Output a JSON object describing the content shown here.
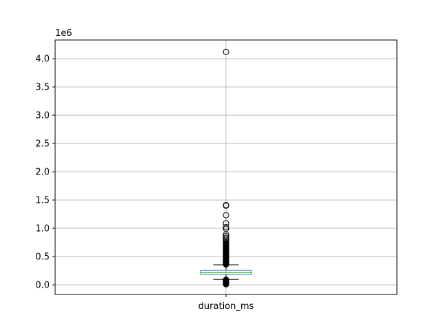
{
  "chart_data": {
    "type": "box",
    "category": "duration_ms",
    "offset_label": "1e6",
    "y_ticks": [
      0.0,
      0.5,
      1.0,
      1.5,
      2.0,
      2.5,
      3.0,
      3.5,
      4.0
    ],
    "y_tick_labels": [
      "0.0",
      "0.5",
      "1.0",
      "1.5",
      "2.0",
      "2.5",
      "3.0",
      "3.5",
      "4.0"
    ],
    "ylim": [
      -0.17,
      4.33
    ],
    "grid": true,
    "box": {
      "whisker_low": 0.095,
      "q1": 0.185,
      "median": 0.215,
      "q3": 0.255,
      "whisker_high": 0.355
    },
    "outliers": [
      0.01,
      0.02,
      0.03,
      0.04,
      0.05,
      0.06,
      0.07,
      0.08,
      0.09,
      0.36,
      0.37,
      0.38,
      0.39,
      0.4,
      0.41,
      0.42,
      0.43,
      0.44,
      0.45,
      0.46,
      0.47,
      0.48,
      0.49,
      0.5,
      0.51,
      0.52,
      0.53,
      0.54,
      0.55,
      0.56,
      0.57,
      0.58,
      0.59,
      0.6,
      0.61,
      0.62,
      0.63,
      0.64,
      0.65,
      0.66,
      0.67,
      0.68,
      0.69,
      0.7,
      0.71,
      0.72,
      0.73,
      0.75,
      0.77,
      0.8,
      0.83,
      0.86,
      0.89,
      0.99,
      1.02,
      1.09,
      1.23,
      1.4,
      1.41,
      4.12
    ],
    "colors": {
      "box": "#1f77b4",
      "median": "#2ca02c",
      "whisker": "#000000",
      "grid": "#b0b0b0"
    }
  }
}
